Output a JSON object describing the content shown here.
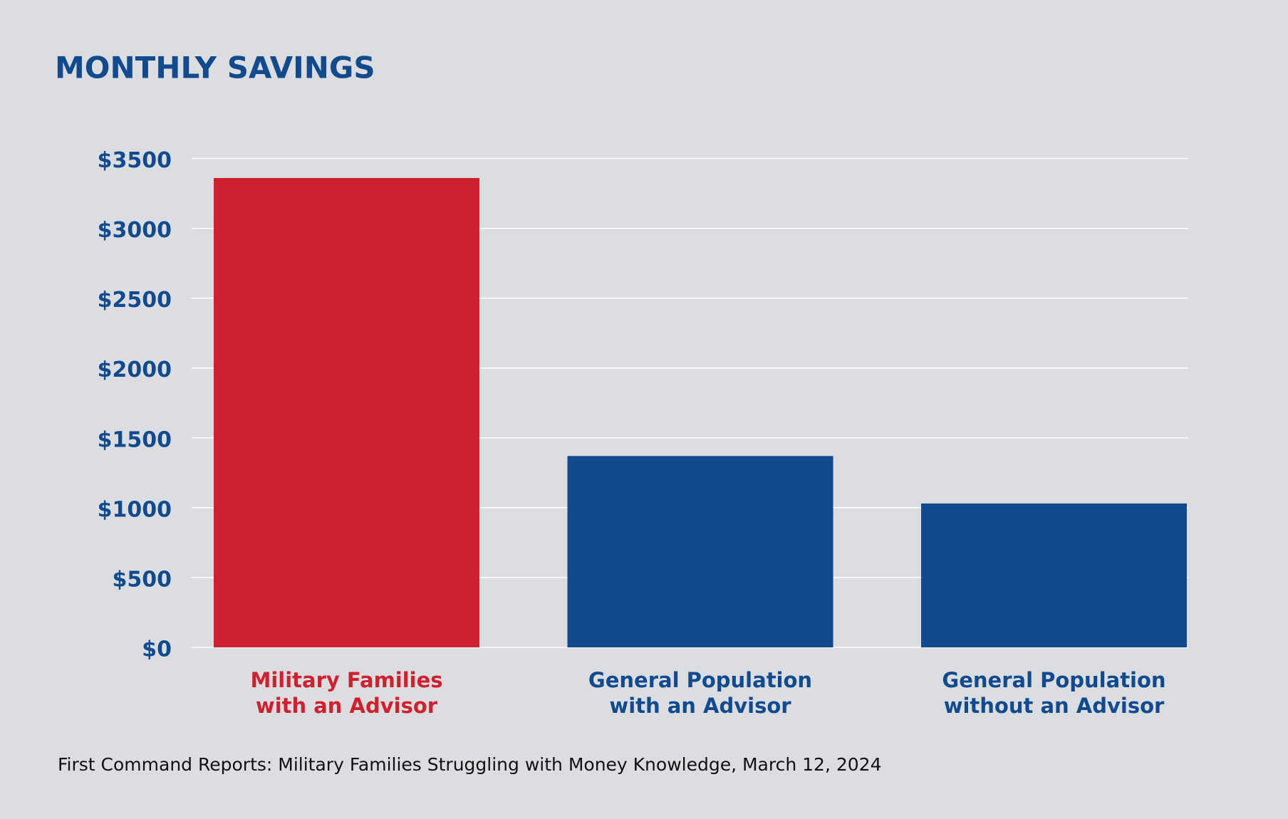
{
  "chart_data": {
    "type": "bar",
    "title": "MONTHLY SAVINGS",
    "categories": [
      "Military Families\nwith an Advisor",
      "General Population\nwith an Advisor",
      "General Population\nwithout an Advisor"
    ],
    "values": [
      3360,
      1370,
      1030
    ],
    "colors": [
      "#cf202f",
      "#114b8e",
      "#114b8e"
    ],
    "ylim": [
      0,
      3500
    ],
    "yticks": [
      {
        "value": 0,
        "label": "$0"
      },
      {
        "value": 500,
        "label": "$500"
      },
      {
        "value": 1000,
        "label": "$1000"
      },
      {
        "value": 1500,
        "label": "$1500"
      },
      {
        "value": 2000,
        "label": "$2000"
      },
      {
        "value": 2500,
        "label": "$2500"
      },
      {
        "value": 3000,
        "label": "$3000"
      },
      {
        "value": 3500,
        "label": "$3500"
      }
    ],
    "grid": true,
    "source": "First Command Reports: Military Families Struggling with Money Knowledge, March 12, 2024"
  }
}
